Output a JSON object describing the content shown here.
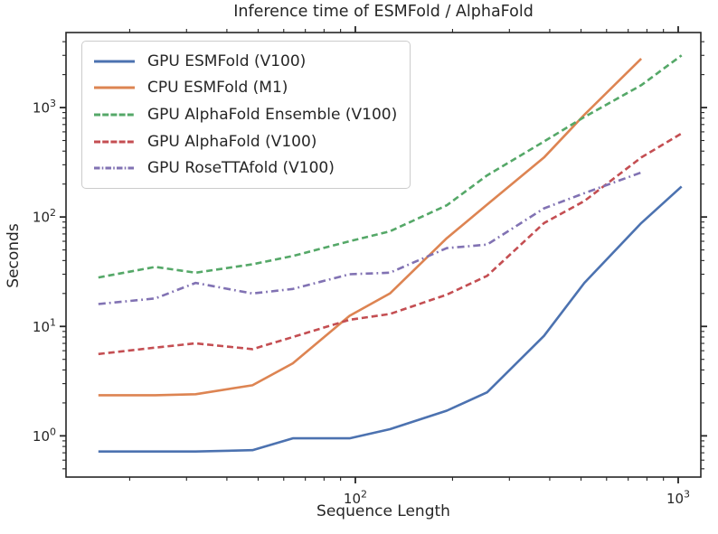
{
  "chart_data": {
    "type": "line",
    "title": "Inference time of ESMFold / AlphaFold",
    "xlabel": "Sequence Length",
    "ylabel": "Seconds",
    "x_scale": "log",
    "y_scale": "log",
    "xlim": [
      12.7,
      1175
    ],
    "ylim": [
      0.42,
      4850
    ],
    "grid": false,
    "legend_position": "upper-left",
    "x": [
      16,
      24,
      32,
      48,
      64,
      96,
      128,
      192,
      256,
      384,
      512,
      768,
      1024
    ],
    "series": [
      {
        "name": "GPU ESMFold (V100)",
        "color": "#4C72B0",
        "style": "solid",
        "values": [
          0.72,
          0.72,
          0.72,
          0.74,
          0.95,
          0.95,
          1.15,
          1.7,
          2.5,
          8.2,
          25,
          88,
          190
        ]
      },
      {
        "name": "CPU ESMFold (M1)",
        "color": "#DD8452",
        "style": "solid",
        "values": [
          2.35,
          2.35,
          2.4,
          2.9,
          4.6,
          12.5,
          20,
          64,
          130,
          350,
          860,
          2800
        ]
      },
      {
        "name": "GPU AlphaFold Ensemble (V100)",
        "color": "#55A868",
        "style": "dashed",
        "values": [
          28,
          35,
          31,
          37,
          44,
          60,
          74,
          128,
          240,
          490,
          820,
          1600,
          3000
        ]
      },
      {
        "name": "GPU AlphaFold (V100)",
        "color": "#C44E52",
        "style": "dashed",
        "values": [
          5.6,
          6.4,
          7.0,
          6.2,
          8.0,
          11.5,
          13,
          19.5,
          29,
          88,
          140,
          350,
          580
        ]
      },
      {
        "name": "GPU RoseTTAfold (V100)",
        "color": "#8172B3",
        "style": "dashdot",
        "values": [
          16,
          18,
          25,
          20,
          22,
          30,
          31,
          52,
          56,
          120,
          165,
          255
        ]
      }
    ],
    "tick_base": "10",
    "x_major_ticks": [
      {
        "value": 100,
        "exp": "2"
      },
      {
        "value": 1000,
        "exp": "3"
      }
    ],
    "y_major_ticks": [
      {
        "value": 1,
        "exp": "0"
      },
      {
        "value": 10,
        "exp": "1"
      },
      {
        "value": 100,
        "exp": "2"
      },
      {
        "value": 1000,
        "exp": "3"
      }
    ]
  }
}
